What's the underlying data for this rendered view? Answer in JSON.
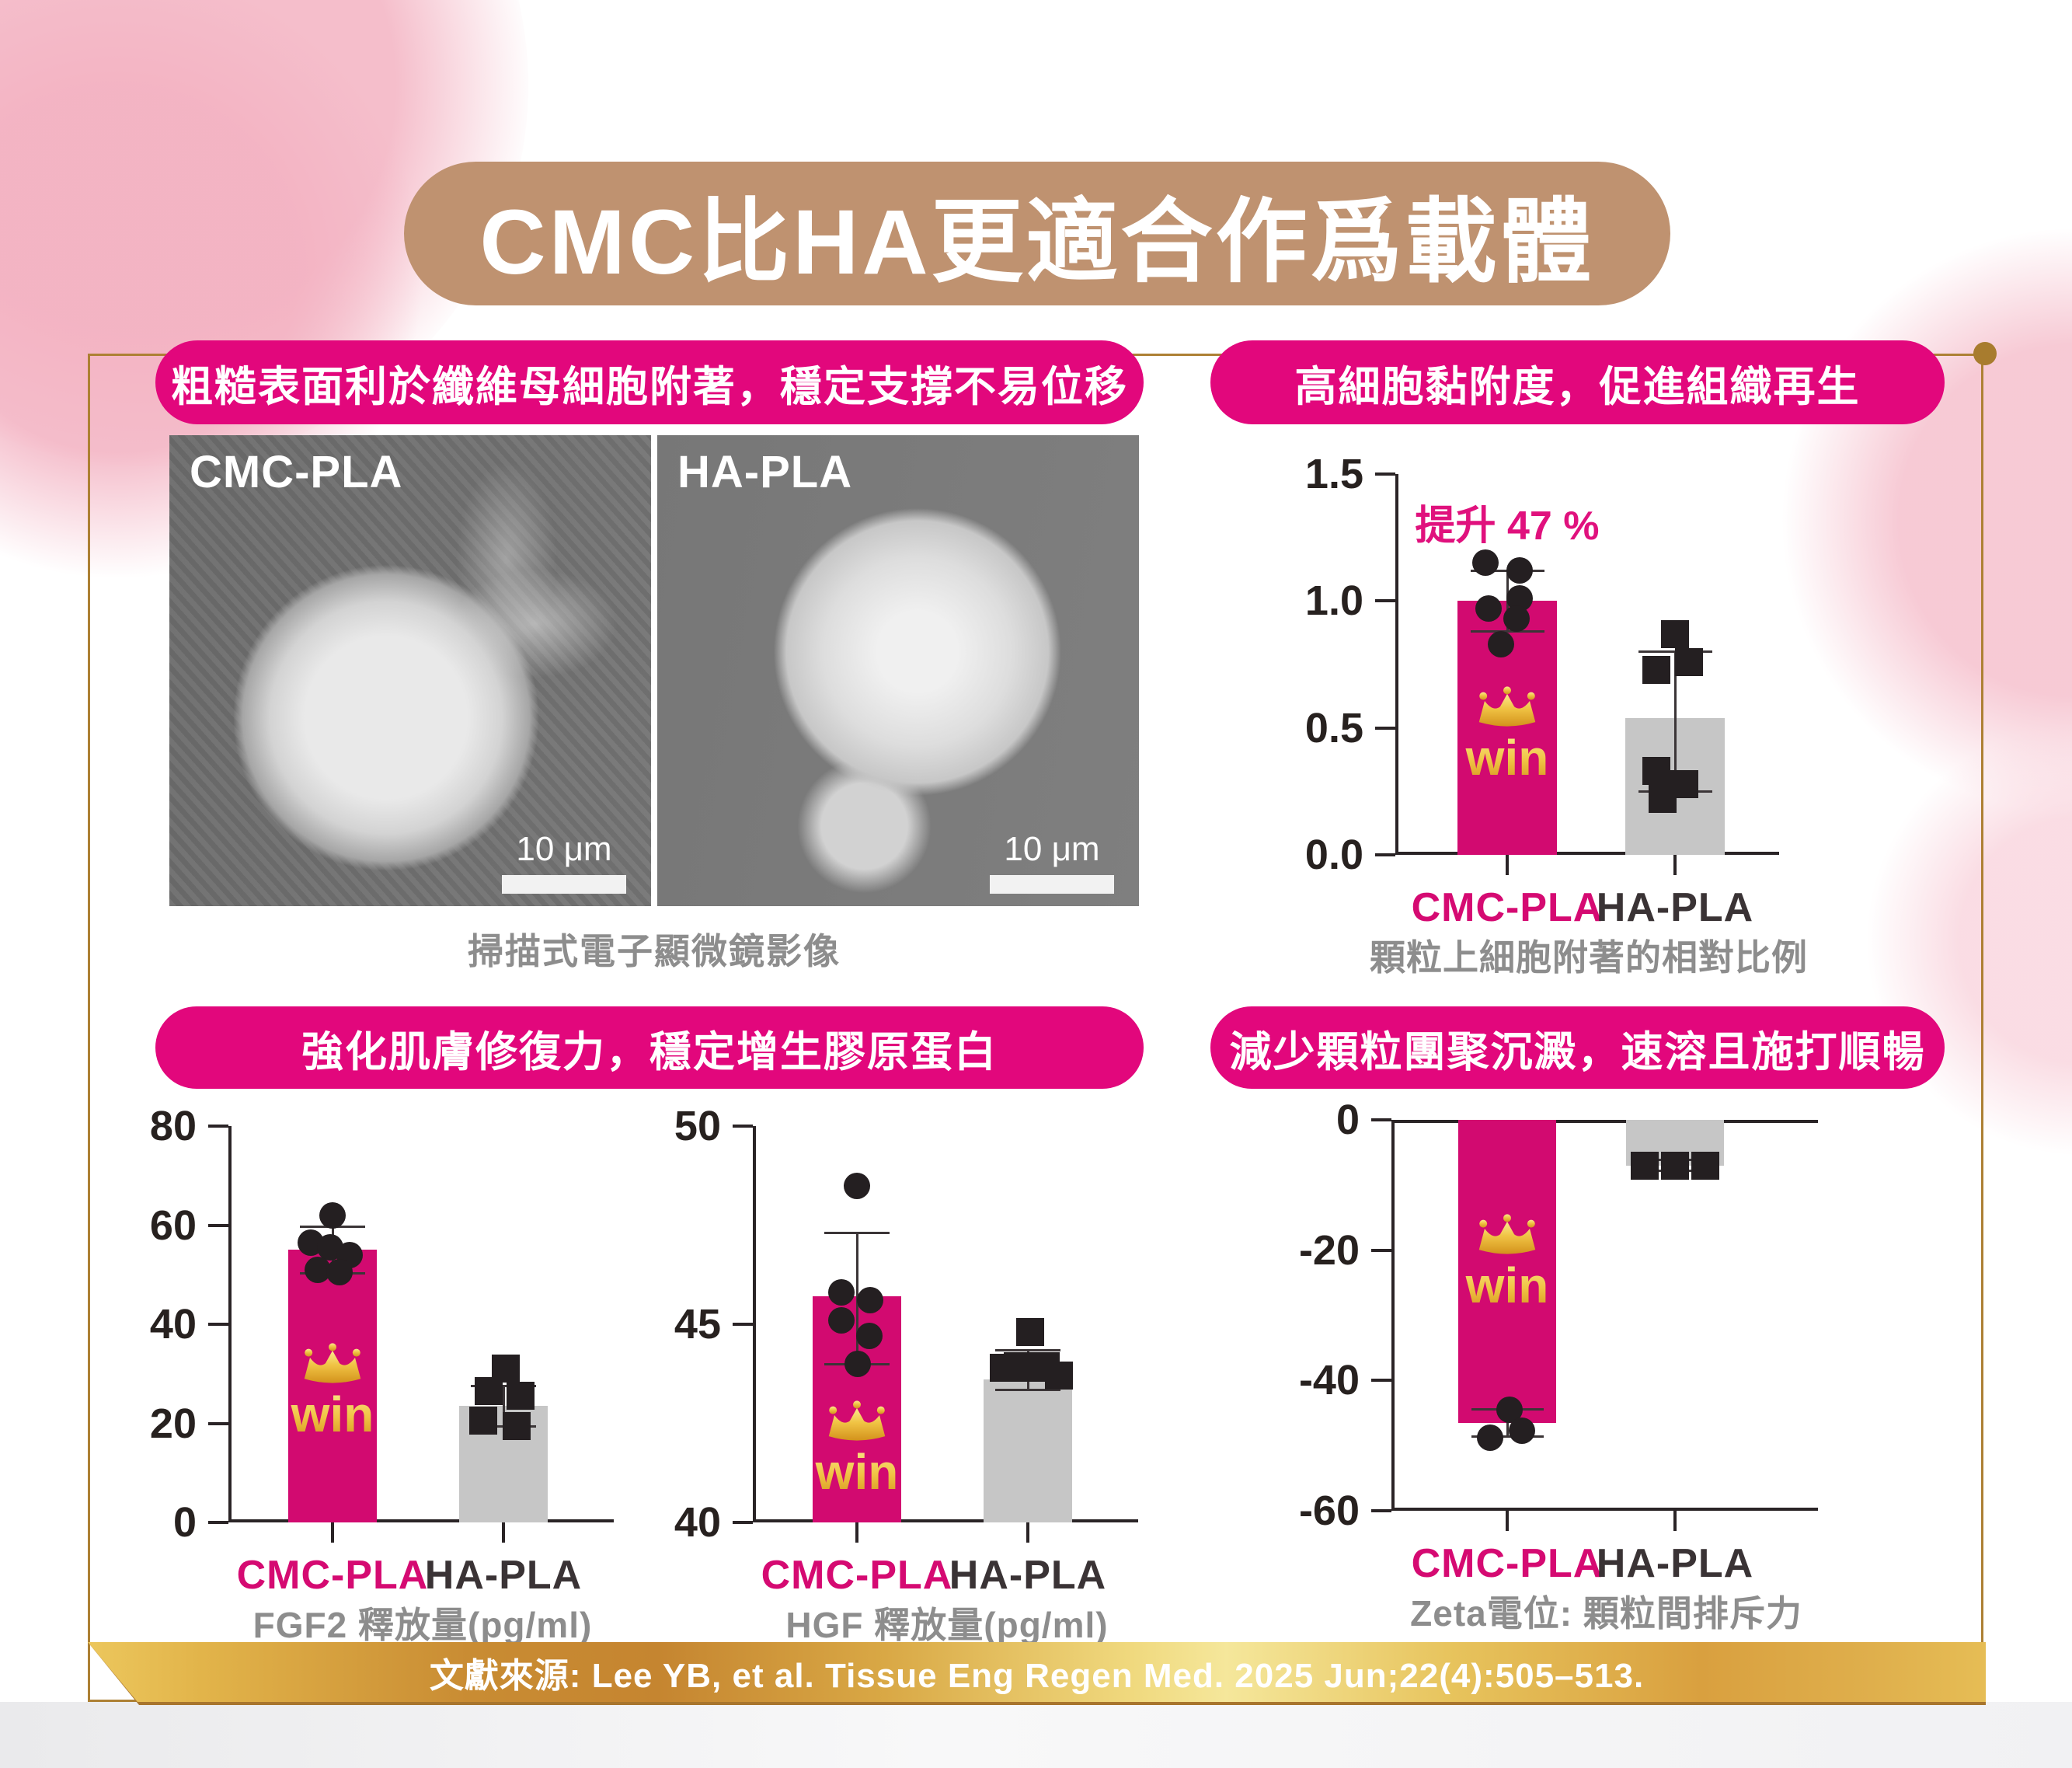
{
  "title": "CMC比HA更適合作爲載體",
  "win_label": "win",
  "footer": {
    "text": "文獻來源: Lee YB, et al. Tissue Eng Regen Med. 2025 Jun;22(4):505–513."
  },
  "sections": {
    "sem": {
      "banner": "粗糙表面利於纖維母細胞附著，穩定支撐不易位移",
      "images": [
        {
          "label": "CMC-PLA",
          "scale_label": "10 μm"
        },
        {
          "label": "HA-PLA",
          "scale_label": "10 μm"
        }
      ],
      "caption": "掃描式電子顯微鏡影像"
    },
    "adhesion": {
      "banner": "高細胞黏附度，促進組織再生"
    },
    "growth": {
      "banner": "強化肌膚修復力，穩定增生膠原蛋白"
    },
    "zeta": {
      "banner": "減少顆粒團聚沉澱，速溶且施打順暢"
    }
  },
  "colors": {
    "banner_pink": "#e2077c",
    "bar_pink": "#d20a70",
    "bar_gray": "#c6c6c6",
    "title_tan": "#bf9270",
    "marker_dark": "#241f21",
    "gold_border": "#ad8034",
    "caption_gray": "#8d8d8d",
    "label_pink": "#d50a72",
    "label_dark": "#3a3335",
    "annotation_pink": "#e0117d",
    "win_gold": "#f0c344"
  },
  "chart_data": [
    {
      "id": "adhesion",
      "type": "bar",
      "caption": "顆粒上細胞附著的相對比例",
      "annotation": "提升 47 %",
      "ylim": [
        0,
        1.5
      ],
      "grid": false,
      "legend": "none",
      "yticks": [
        {
          "v": 0,
          "label": "0.0"
        },
        {
          "v": 0.5,
          "label": "0.5"
        },
        {
          "v": 1.0,
          "label": "1.0"
        },
        {
          "v": 1.5,
          "label": "1.5"
        }
      ],
      "categories": [
        "CMC-PLA",
        "HA-PLA"
      ],
      "series": [
        {
          "name": "CMC-PLA",
          "value": 1.0,
          "err": [
            0.88,
            1.12
          ],
          "marker": "circle",
          "color": "#d20a70",
          "label_color": "#d50a72",
          "win": true,
          "points": [
            {
              "v": 1.15,
              "o": -0.44
            },
            {
              "v": 1.12,
              "o": 0.25
            },
            {
              "v": 1.01,
              "o": 0.25
            },
            {
              "v": 0.97,
              "o": -0.38
            },
            {
              "v": 0.93,
              "o": 0.19
            },
            {
              "v": 0.83,
              "o": -0.13
            }
          ]
        },
        {
          "name": "HA-PLA",
          "value": 0.54,
          "err": [
            0.25,
            0.8
          ],
          "marker": "square",
          "color": "#c6c6c6",
          "label_color": "#3a3335",
          "win": false,
          "points": [
            {
              "v": 0.87,
              "o": 0
            },
            {
              "v": 0.76,
              "o": 0.28
            },
            {
              "v": 0.73,
              "o": -0.38
            },
            {
              "v": 0.33,
              "o": -0.38
            },
            {
              "v": 0.28,
              "o": 0.19
            },
            {
              "v": 0.22,
              "o": -0.25
            }
          ]
        }
      ]
    },
    {
      "id": "fgf2",
      "type": "bar",
      "caption": "FGF2 釋放量(pg/ml)",
      "ylim": [
        0,
        80
      ],
      "grid": false,
      "legend": "none",
      "yticks": [
        {
          "v": 0,
          "label": "0"
        },
        {
          "v": 20,
          "label": "20"
        },
        {
          "v": 40,
          "label": "40"
        },
        {
          "v": 60,
          "label": "60"
        },
        {
          "v": 80,
          "label": "80"
        }
      ],
      "categories": [
        "CMC-PLA",
        "HA-PLA"
      ],
      "series": [
        {
          "name": "CMC-PLA",
          "value": 55,
          "err": [
            50.3,
            59.7
          ],
          "marker": "circle",
          "color": "#d20a70",
          "label_color": "#d50a72",
          "win": true,
          "points": [
            {
              "v": 62,
              "o": 0
            },
            {
              "v": 56.5,
              "o": -0.5
            },
            {
              "v": 55.5,
              "o": -0.05
            },
            {
              "v": 54,
              "o": 0.38
            },
            {
              "v": 51,
              "o": -0.33
            },
            {
              "v": 50.5,
              "o": 0.15
            }
          ]
        },
        {
          "name": "HA-PLA",
          "value": 23.5,
          "err": [
            19.3,
            27.6
          ],
          "marker": "square",
          "color": "#c6c6c6",
          "label_color": "#3a3335",
          "win": false,
          "points": [
            {
              "v": 31,
              "o": 0.05
            },
            {
              "v": 26.5,
              "o": -0.33
            },
            {
              "v": 25.5,
              "o": 0.38
            },
            {
              "v": 20.5,
              "o": -0.45
            },
            {
              "v": 19.5,
              "o": 0.3
            }
          ]
        }
      ]
    },
    {
      "id": "hgf",
      "type": "bar",
      "caption": "HGF 釋放量(pg/ml)",
      "ylim": [
        40,
        50
      ],
      "grid": false,
      "legend": "none",
      "yticks": [
        {
          "v": 40,
          "label": "40"
        },
        {
          "v": 45,
          "label": "45"
        },
        {
          "v": 50,
          "label": "50"
        }
      ],
      "categories": [
        "CMC-PLA",
        "HA-PLA"
      ],
      "series": [
        {
          "name": "CMC-PLA",
          "value": 45.7,
          "err": [
            44.0,
            47.3
          ],
          "marker": "circle",
          "color": "#d20a70",
          "label_color": "#d50a72",
          "win": true,
          "points": [
            {
              "v": 48.5,
              "o": 0
            },
            {
              "v": 45.8,
              "o": -0.35
            },
            {
              "v": 45.6,
              "o": 0.3
            },
            {
              "v": 45.1,
              "o": -0.35
            },
            {
              "v": 44.7,
              "o": 0.28
            },
            {
              "v": 44.0,
              "o": 0.02
            }
          ]
        },
        {
          "name": "HA-PLA",
          "value": 43.6,
          "err": [
            43.35,
            44.35
          ],
          "marker": "square",
          "color": "#c6c6c6",
          "label_color": "#3a3335",
          "win": false,
          "points": [
            {
              "v": 44.8,
              "o": 0.05
            },
            {
              "v": 43.9,
              "o": -0.55
            },
            {
              "v": 43.95,
              "o": -0.22
            },
            {
              "v": 43.9,
              "o": 0.08
            },
            {
              "v": 43.95,
              "o": 0.4
            },
            {
              "v": 43.7,
              "o": 0.7
            }
          ]
        }
      ]
    },
    {
      "id": "zeta",
      "type": "bar",
      "caption": "Zeta電位: 顆粒間排斥力",
      "ylim": [
        -60,
        0
      ],
      "grid": false,
      "legend": "none",
      "yticks": [
        {
          "v": 0,
          "label": "0"
        },
        {
          "v": -20,
          "label": "-20"
        },
        {
          "v": -40,
          "label": "-40"
        },
        {
          "v": -60,
          "label": "-60"
        }
      ],
      "categories": [
        "CMC-PLA",
        "HA-PLA"
      ],
      "series": [
        {
          "name": "CMC-PLA",
          "value": -46.5,
          "err": [
            -48.6,
            -44.4
          ],
          "marker": "circle",
          "color": "#d20a70",
          "label_color": "#d50a72",
          "win": true,
          "points": [
            {
              "v": -44.5,
              "o": 0.05
            },
            {
              "v": -48.8,
              "o": -0.35
            },
            {
              "v": -47.7,
              "o": 0.3
            }
          ]
        },
        {
          "name": "HA-PLA",
          "value": -7,
          "err": [
            -7.8,
            -6.2
          ],
          "marker": "square",
          "color": "#c6c6c6",
          "label_color": "#3a3335",
          "win": false,
          "points": [
            {
              "v": -7,
              "o": -0.62
            },
            {
              "v": -7,
              "o": 0
            },
            {
              "v": -7,
              "o": 0.62
            }
          ]
        }
      ]
    }
  ]
}
